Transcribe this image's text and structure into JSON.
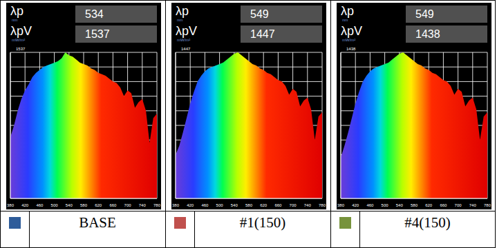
{
  "chart_data": [
    {
      "type": "area",
      "annotations": [
        {
          "label": "λp",
          "unit": "nm",
          "value": 534
        },
        {
          "label": "λpV",
          "unit": "mW/m²",
          "value": 1537
        }
      ],
      "x": [
        380,
        390,
        400,
        410,
        420,
        430,
        440,
        450,
        460,
        470,
        480,
        490,
        500,
        510,
        520,
        530,
        540,
        550,
        560,
        570,
        580,
        590,
        600,
        610,
        620,
        630,
        640,
        650,
        660,
        670,
        680,
        690,
        700,
        710,
        720,
        730,
        740,
        750,
        760,
        770,
        780
      ],
      "series": [
        {
          "name": "BASE",
          "color": "#2e5c9a",
          "values": [
            646,
            769,
            922,
            1045,
            1137,
            1199,
            1276,
            1322,
            1353,
            1383,
            1399,
            1414,
            1429,
            1445,
            1476,
            1537,
            1506,
            1491,
            1460,
            1429,
            1414,
            1399,
            1368,
            1353,
            1322,
            1306,
            1291,
            1260,
            1230,
            1214,
            1168,
            1076,
            1137,
            1107,
            953,
            1014,
            1045,
            922,
            584,
            845,
            891
          ]
        }
      ],
      "xlim": [
        380,
        780
      ],
      "xticks": [
        380,
        420,
        460,
        500,
        540,
        580,
        620,
        660,
        700,
        740,
        780
      ],
      "ylim": [
        0,
        1537
      ],
      "yticks": [
        1537
      ],
      "grid": true
    },
    {
      "type": "area",
      "annotations": [
        {
          "label": "λp",
          "unit": "nm",
          "value": 549
        },
        {
          "label": "λpV",
          "unit": "mW/m²",
          "value": 1447
        }
      ],
      "x": [
        380,
        390,
        400,
        410,
        420,
        430,
        440,
        450,
        460,
        470,
        480,
        490,
        500,
        510,
        520,
        530,
        540,
        550,
        560,
        570,
        580,
        590,
        600,
        610,
        620,
        630,
        640,
        650,
        660,
        670,
        680,
        690,
        700,
        710,
        720,
        730,
        740,
        750,
        760,
        770,
        780
      ],
      "series": [
        {
          "name": "#1(150)",
          "color": "#c0504d",
          "values": [
            434,
            521,
            651,
            796,
            941,
            1056,
            1158,
            1215,
            1259,
            1288,
            1302,
            1317,
            1331,
            1346,
            1375,
            1404,
            1433,
            1447,
            1418,
            1389,
            1360,
            1331,
            1317,
            1288,
            1273,
            1244,
            1230,
            1201,
            1172,
            1158,
            1114,
            1027,
            1085,
            1056,
            912,
            969,
            998,
            883,
            579,
            810,
            854
          ]
        }
      ],
      "xlim": [
        380,
        780
      ],
      "xticks": [
        380,
        420,
        460,
        500,
        540,
        580,
        620,
        660,
        700,
        740,
        780
      ],
      "ylim": [
        0,
        1447
      ],
      "yticks": [
        1447
      ],
      "grid": true
    },
    {
      "type": "area",
      "annotations": [
        {
          "label": "λp",
          "unit": "nm",
          "value": 549
        },
        {
          "label": "λpV",
          "unit": "mW/m²",
          "value": 1438
        }
      ],
      "x": [
        380,
        390,
        400,
        410,
        420,
        430,
        440,
        450,
        460,
        470,
        480,
        490,
        500,
        510,
        520,
        530,
        540,
        550,
        560,
        570,
        580,
        590,
        600,
        610,
        620,
        630,
        640,
        650,
        660,
        670,
        680,
        690,
        700,
        710,
        720,
        730,
        740,
        750,
        760,
        770,
        780
      ],
      "series": [
        {
          "name": "#4(150)",
          "color": "#77933c",
          "values": [
            403,
            518,
            647,
            791,
            935,
            1050,
            1150,
            1208,
            1251,
            1280,
            1294,
            1309,
            1323,
            1337,
            1366,
            1395,
            1424,
            1438,
            1409,
            1380,
            1352,
            1323,
            1309,
            1280,
            1265,
            1237,
            1222,
            1194,
            1165,
            1150,
            1107,
            1021,
            1079,
            1050,
            906,
            963,
            992,
            877,
            575,
            805,
            848
          ]
        }
      ],
      "xlim": [
        380,
        780
      ],
      "xticks": [
        380,
        420,
        460,
        500,
        540,
        580,
        620,
        660,
        700,
        740,
        780
      ],
      "ylim": [
        0,
        1438
      ],
      "yticks": [
        1438
      ],
      "grid": true
    }
  ]
}
